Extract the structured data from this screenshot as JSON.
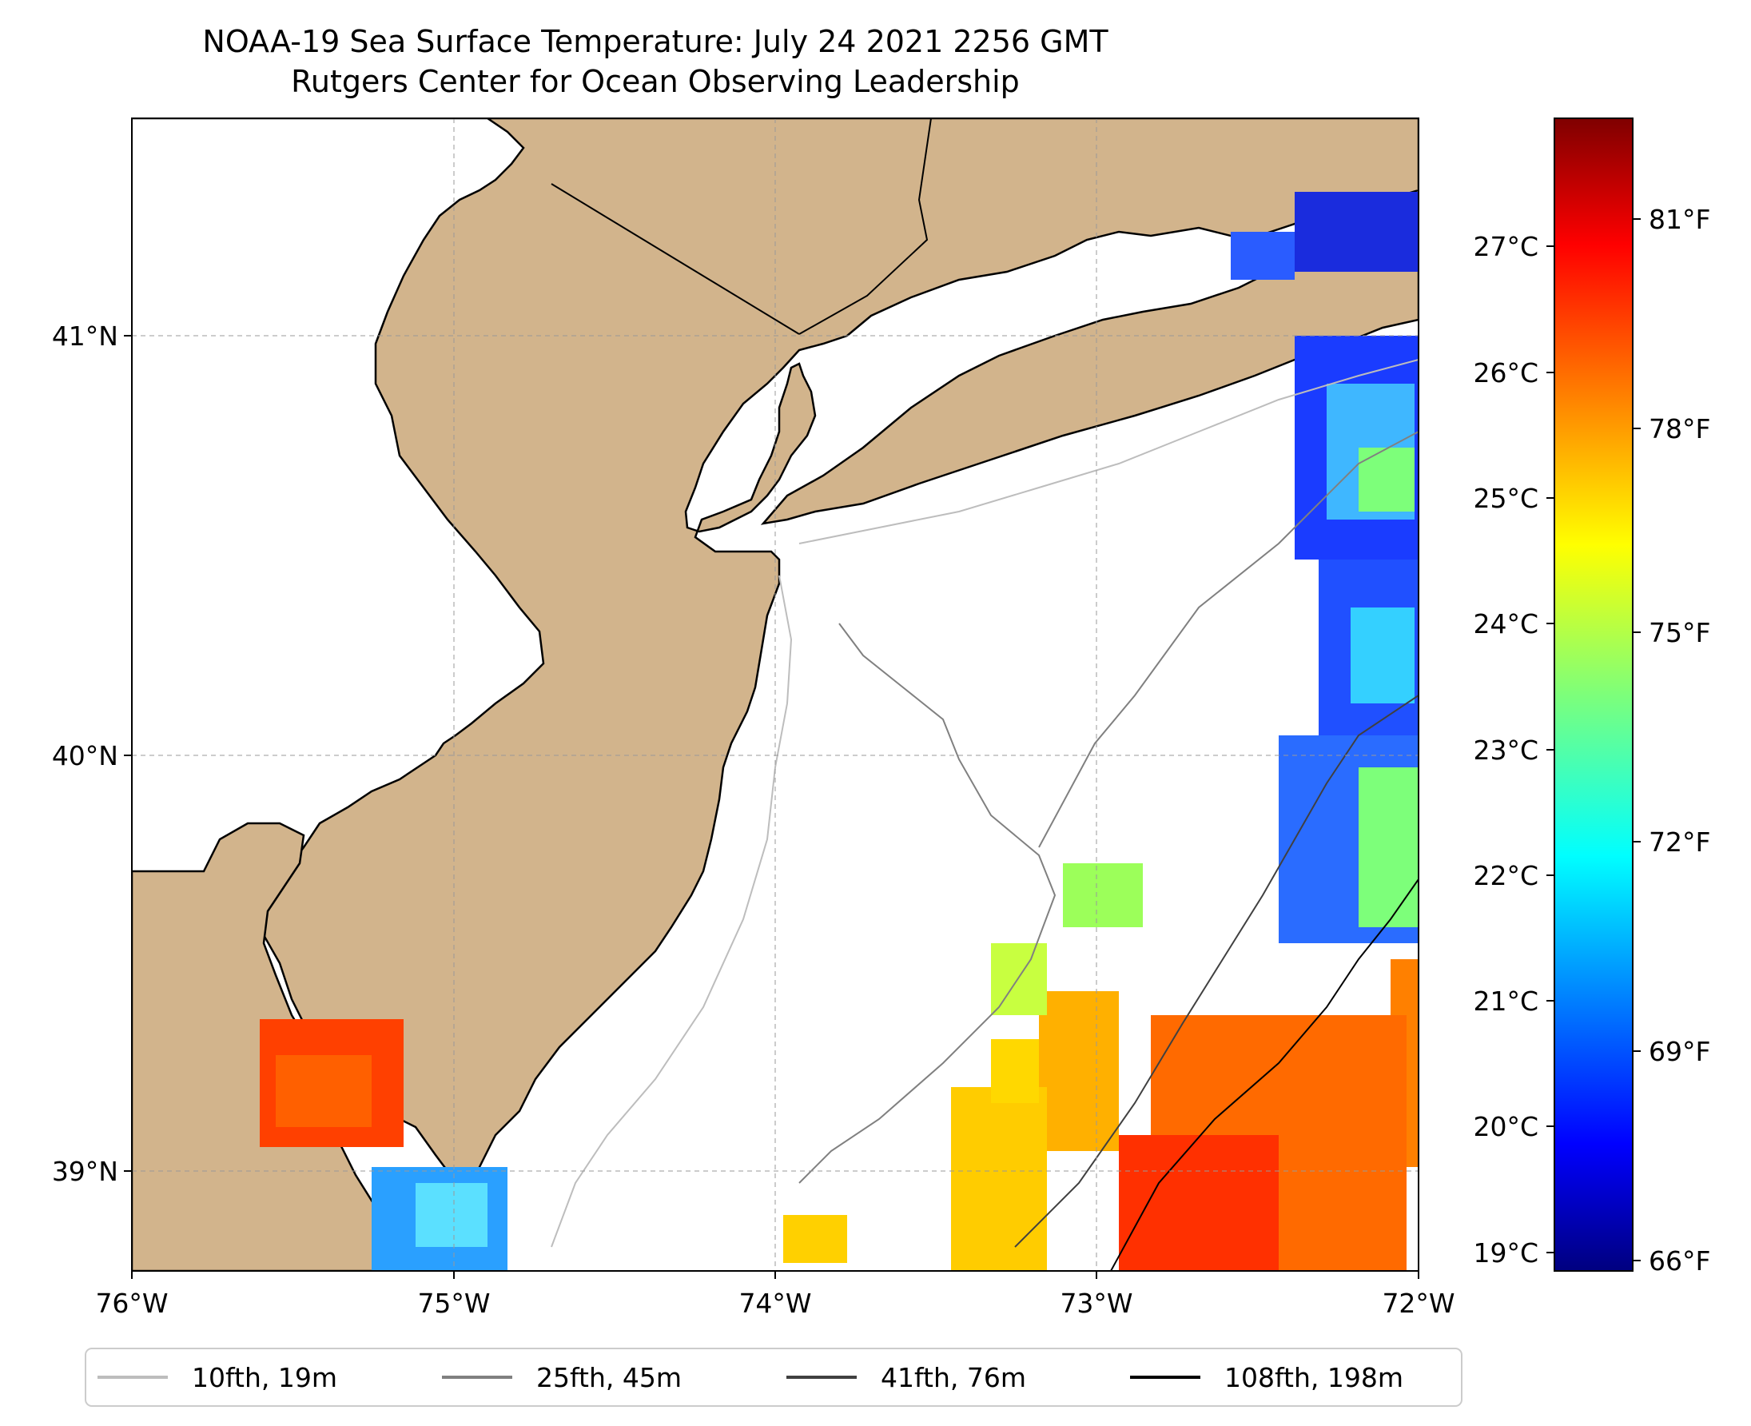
{
  "title": "NOAA-19 Sea Surface Temperature: July 24 2021 2256 GMT",
  "subtitle": "Rutgers Center for Ocean Observing Leadership",
  "map": {
    "lon_range": [
      -76,
      -72
    ],
    "lat_range": [
      38.73,
      41.52
    ],
    "lon_ticks": [
      "76°W",
      "75°W",
      "74°W",
      "73°W",
      "72°W"
    ],
    "lat_ticks": [
      "41°N",
      "40°N",
      "39°N"
    ],
    "land_color": "#d2b48c",
    "ocean_color": "#ffffff",
    "grid": "dashed"
  },
  "colorbar": {
    "colormap": "jet",
    "celsius_ticks": [
      "19°C",
      "20°C",
      "21°C",
      "22°C",
      "23°C",
      "24°C",
      "25°C",
      "26°C",
      "27°C"
    ],
    "fahrenheit_ticks": [
      "66°F",
      "69°F",
      "72°F",
      "75°F",
      "78°F",
      "81°F"
    ]
  },
  "legend": [
    {
      "label": "10fth, 19m",
      "color": "#bdbdbd"
    },
    {
      "label": "25fth, 45m",
      "color": "#808080"
    },
    {
      "label": "41fth, 76m",
      "color": "#404040"
    },
    {
      "label": "108fth, 198m",
      "color": "#000000"
    }
  ]
}
